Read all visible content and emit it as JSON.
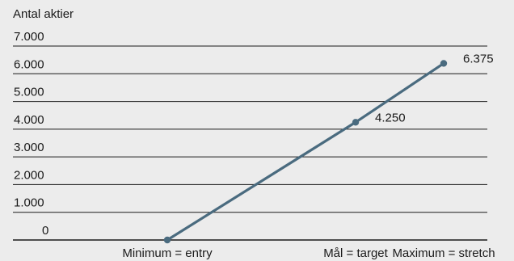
{
  "chart_data": {
    "type": "line",
    "ylabel": "Antal aktier",
    "categories": [
      "Minimum = entry",
      "Mål = target",
      "Maximum = stretch"
    ],
    "values": [
      0,
      4250,
      6375
    ],
    "data_labels": [
      "",
      "4.250",
      "6.375"
    ],
    "y_ticks": [
      0,
      1000,
      2000,
      3000,
      4000,
      5000,
      6000,
      7000
    ],
    "y_tick_labels": [
      "0",
      "1.000",
      "2.000",
      "3.000",
      "4.000",
      "5.000",
      "6.000",
      "7.000"
    ],
    "ylim": [
      0,
      7000
    ],
    "grid": true,
    "colors": {
      "line": "#4a6b7f",
      "grid": "#1a1a1a",
      "text": "#1a1a1a",
      "background": "#ececec"
    }
  }
}
